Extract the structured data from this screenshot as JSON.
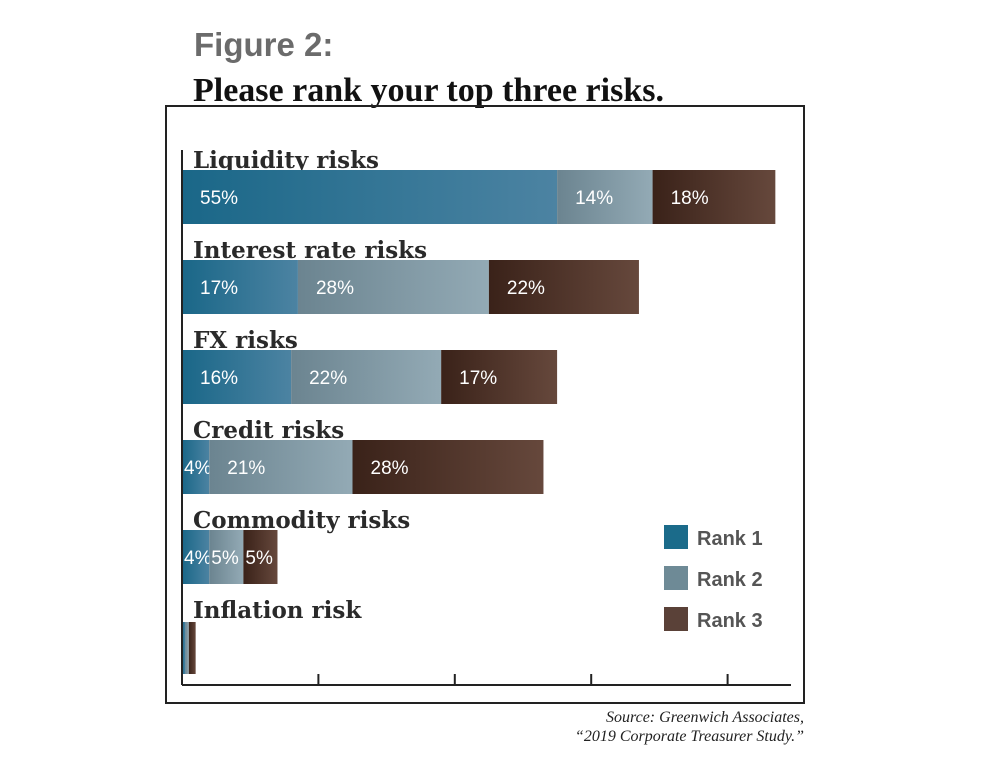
{
  "figure_label": "Figure 2:",
  "title": "Please rank your top three risks.",
  "source_line1": "Source: Greenwich Associates,",
  "source_line2": "“2019 Corporate Treasurer Study.”",
  "colors": {
    "rank1_dark": "#1a6788",
    "rank1_light": "#4c83a2",
    "rank2_dark": "#6b8490",
    "rank2_light": "#93aab5",
    "rank3_dark": "#3a2219",
    "rank3_light": "#66483c",
    "legend_rank1": "#1b6b8a",
    "legend_rank2": "#6e8a96",
    "legend_rank3": "#5a4138"
  },
  "chart_data": {
    "type": "bar",
    "orientation": "horizontal",
    "stacked": true,
    "categories": [
      "Liquidity risks",
      "Interest rate risks",
      "FX risks",
      "Credit risks",
      "Commodity risks",
      "Inflation risk"
    ],
    "series": [
      {
        "name": "Rank 1",
        "values": [
          55,
          17,
          16,
          4,
          4,
          0.5
        ],
        "labels": [
          "55%",
          "17%",
          "16%",
          "4%",
          "4%",
          ""
        ]
      },
      {
        "name": "Rank 2",
        "values": [
          14,
          28,
          22,
          21,
          5,
          0.5
        ],
        "labels": [
          "14%",
          "28%",
          "22%",
          "21%",
          "5%",
          ""
        ]
      },
      {
        "name": "Rank 3",
        "values": [
          18,
          22,
          17,
          28,
          5,
          1
        ],
        "labels": [
          "18%",
          "22%",
          "17%",
          "28%",
          "5%",
          ""
        ]
      }
    ],
    "xlim": [
      0,
      90
    ],
    "xticks": [
      20,
      40,
      60,
      80
    ],
    "legend_position": "bottom-right",
    "grid": false
  }
}
